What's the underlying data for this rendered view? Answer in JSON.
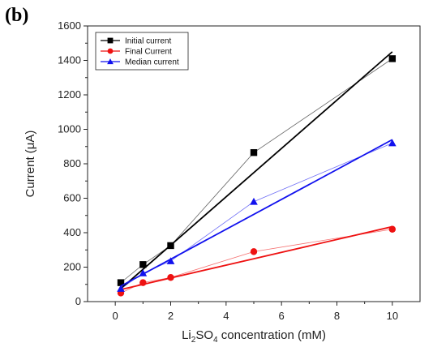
{
  "panel_label": "(b)",
  "chart_data": {
    "type": "scatter",
    "title": "",
    "xlabel_prefix": "Li",
    "xlabel_sub1": "2",
    "xlabel_mid": "SO",
    "xlabel_sub2": "4",
    "xlabel_suffix": " concentration (mM)",
    "ylabel": "Current (μA)",
    "xlim": [
      -1,
      11
    ],
    "ylim": [
      0,
      1600
    ],
    "xticks": [
      0,
      2,
      4,
      6,
      8,
      10
    ],
    "yticks": [
      0,
      200,
      400,
      600,
      800,
      1000,
      1200,
      1400,
      1600
    ],
    "grid": false,
    "legend_position": "top-left",
    "x": [
      0.2,
      1,
      2,
      5,
      10
    ],
    "series": [
      {
        "name": "Initial current",
        "marker": "square",
        "color": "#000000",
        "values": [
          110,
          215,
          325,
          865,
          1410
        ],
        "fit": [
          0.2,
          75,
          10,
          1450
        ]
      },
      {
        "name": "Final Current",
        "marker": "circle",
        "color": "#ee1111",
        "values": [
          50,
          110,
          140,
          290,
          420
        ],
        "fit": [
          0.2,
          70,
          10,
          435
        ]
      },
      {
        "name": "Median current",
        "marker": "triangle",
        "color": "#1111ee",
        "values": [
          75,
          165,
          235,
          580,
          920
        ],
        "fit": [
          0.2,
          90,
          10,
          940
        ]
      }
    ]
  }
}
